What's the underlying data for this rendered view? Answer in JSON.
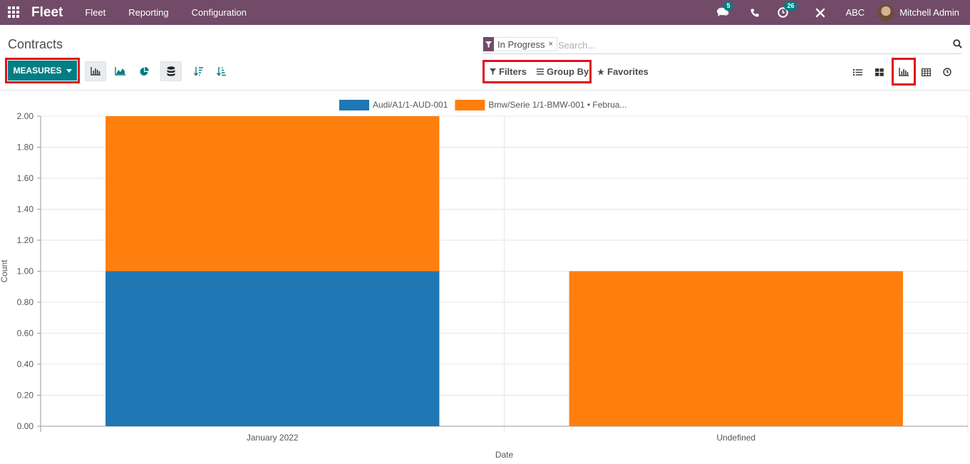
{
  "navbar": {
    "app_name": "Fleet",
    "menus": [
      "Fleet",
      "Reporting",
      "Configuration"
    ],
    "messages_count": "5",
    "activities_count": "26",
    "company": "ABC",
    "user_name": "Mitchell Admin"
  },
  "control_panel": {
    "breadcrumb": "Contracts",
    "measures_label": "MEASURES",
    "search": {
      "facet_value": "In Progress",
      "facet_remove": "×",
      "placeholder": "Search..."
    },
    "filters_label": "Filters",
    "group_by_label": "Group By",
    "favorites_label": "Favorites"
  },
  "colors": {
    "brand": "#714b67",
    "primary": "#017e84",
    "highlight": "#e0101f"
  },
  "chart_data": {
    "type": "bar",
    "stacked": true,
    "categories": [
      "January 2022",
      "Undefined"
    ],
    "series": [
      {
        "name": "Audi/A1/1-AUD-001",
        "values": [
          1,
          0
        ],
        "color": "#1f77b4"
      },
      {
        "name": "Bmw/Serie 1/1-BMW-001 • Februa...",
        "values": [
          1,
          1
        ],
        "color": "#ff7f0e"
      }
    ],
    "xlabel": "Date",
    "ylabel": "Count",
    "ylim": [
      0,
      2
    ],
    "yticks": [
      "0.00",
      "0.20",
      "0.40",
      "0.60",
      "0.80",
      "1.00",
      "1.20",
      "1.40",
      "1.60",
      "1.80",
      "2.00"
    ],
    "grid": true,
    "legend": "top-center"
  }
}
